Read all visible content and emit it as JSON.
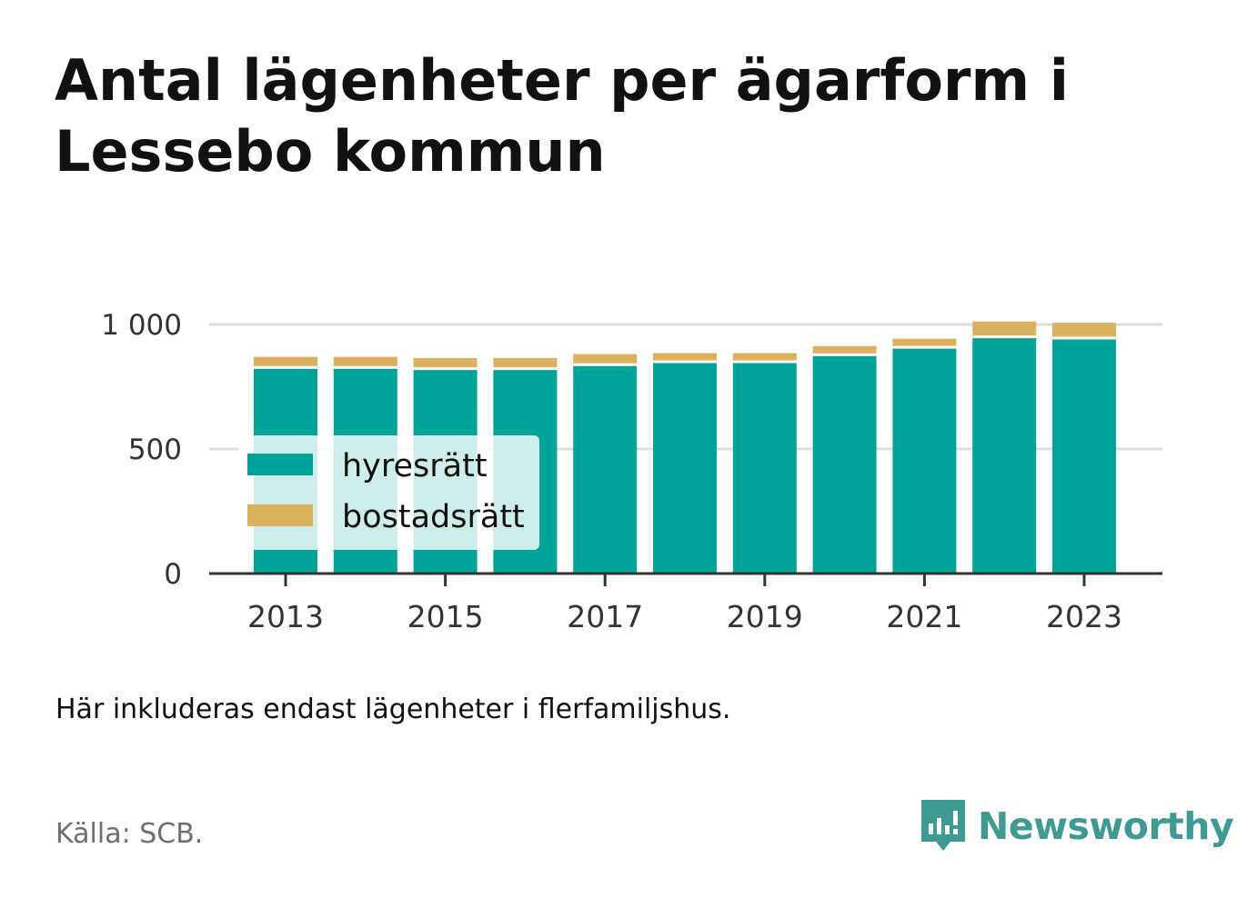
{
  "title": "Antal lägenheter per ägarform i Lessebo kommun",
  "note": "Här inkluderas endast lägenheter i flerfamiljshus.",
  "source": "Källa: SCB.",
  "brand": {
    "name": "Newsworthy",
    "icon": "newsworthy-logo-icon"
  },
  "colors": {
    "hyresratt": "#00a398",
    "bostadsratt": "#dbb15e",
    "grid": "#dddddd",
    "axis": "#333333"
  },
  "chart_data": {
    "type": "bar",
    "stacked": true,
    "categories": [
      "2013",
      "2014",
      "2015",
      "2016",
      "2017",
      "2018",
      "2019",
      "2020",
      "2021",
      "2022",
      "2023"
    ],
    "x_tick_labels": [
      "2013",
      "2015",
      "2017",
      "2019",
      "2021",
      "2023"
    ],
    "y_ticks": [
      0,
      500,
      1000
    ],
    "y_tick_labels": [
      "0",
      "500",
      "1 000"
    ],
    "ylim": [
      0,
      1000
    ],
    "grid": true,
    "legend_position": "left",
    "series": [
      {
        "name": "hyresrätt",
        "color": "#00a398",
        "values": [
          822,
          822,
          817,
          817,
          833,
          845,
          845,
          873,
          903,
          945,
          940
        ]
      },
      {
        "name": "bostadsrätt",
        "color": "#dbb15e",
        "values": [
          48,
          48,
          48,
          48,
          48,
          40,
          40,
          40,
          40,
          67,
          67
        ]
      }
    ]
  }
}
